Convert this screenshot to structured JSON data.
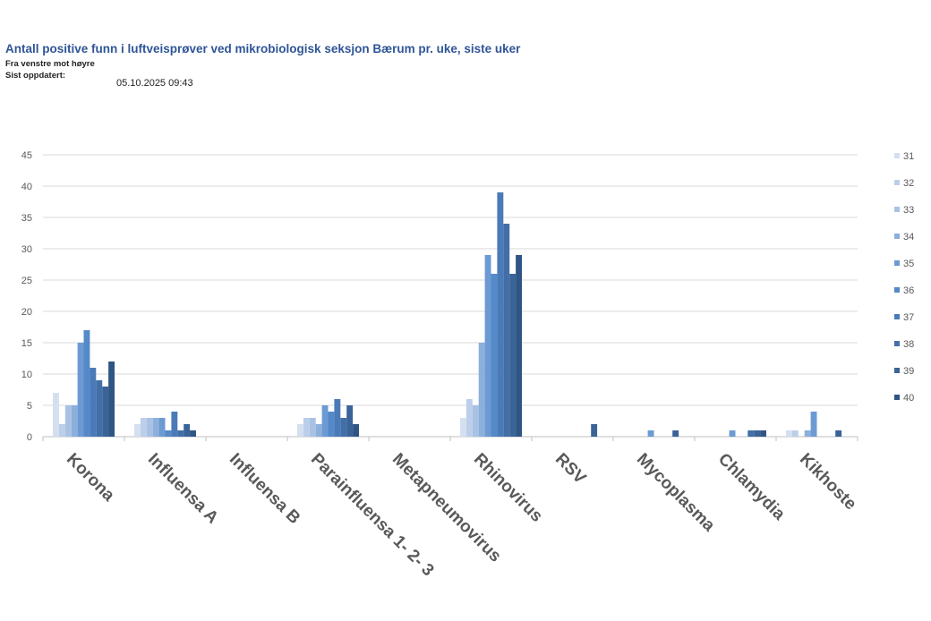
{
  "header": {
    "title": "Antall positive funn i luftveisprøver ved mikrobiologisk seksjon Bærum pr. uke, siste uker",
    "subtitle": "Fra venstre mot høyre",
    "updated_label": "Sist oppdatert:",
    "updated_value": "05.10.2025 09:43"
  },
  "chart_data": {
    "type": "bar",
    "title": "",
    "xlabel": "",
    "ylabel": "",
    "ylim": [
      0,
      45
    ],
    "yticks": [
      0,
      5,
      10,
      15,
      20,
      25,
      30,
      35,
      40,
      45
    ],
    "grid": true,
    "legend_position": "right",
    "categories": [
      "Korona",
      "Influensa A",
      "Influensa B",
      "Parainfluensa 1- 2- 3",
      "Metapneumovirus",
      "Rhinovirus",
      "RSV",
      "Mycoplasma",
      "Chlamydia",
      "Kikhoste"
    ],
    "series": [
      {
        "name": "31",
        "color": "#d4dff0",
        "values": [
          7,
          2,
          0,
          2,
          0,
          3,
          0,
          0,
          0,
          1
        ]
      },
      {
        "name": "32",
        "color": "#bccfea",
        "values": [
          2,
          3,
          0,
          3,
          0,
          6,
          0,
          0,
          0,
          1
        ]
      },
      {
        "name": "33",
        "color": "#a9c2e4",
        "values": [
          5,
          3,
          0,
          3,
          0,
          5,
          0,
          0,
          0,
          0
        ]
      },
      {
        "name": "34",
        "color": "#8cafdc",
        "values": [
          5,
          3,
          0,
          2,
          0,
          15,
          0,
          0,
          0,
          1
        ]
      },
      {
        "name": "35",
        "color": "#6c9ad3",
        "values": [
          15,
          3,
          0,
          5,
          0,
          29,
          0,
          1,
          1,
          4
        ]
      },
      {
        "name": "36",
        "color": "#5589c8",
        "values": [
          17,
          1,
          0,
          4,
          0,
          26,
          0,
          0,
          0,
          0
        ]
      },
      {
        "name": "37",
        "color": "#4a7bb8",
        "values": [
          11,
          4,
          0,
          6,
          0,
          39,
          0,
          0,
          0,
          0
        ]
      },
      {
        "name": "38",
        "color": "#426fa8",
        "values": [
          9,
          1,
          0,
          3,
          0,
          34,
          0,
          0,
          1,
          0
        ]
      },
      {
        "name": "39",
        "color": "#3a6398",
        "values": [
          8,
          2,
          0,
          5,
          0,
          26,
          2,
          1,
          1,
          1
        ]
      },
      {
        "name": "40",
        "color": "#2f5584",
        "values": [
          12,
          1,
          0,
          2,
          0,
          29,
          0,
          0,
          1,
          0
        ]
      }
    ]
  }
}
